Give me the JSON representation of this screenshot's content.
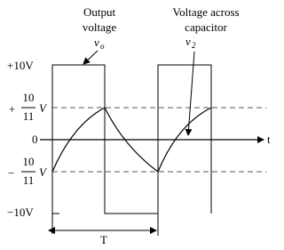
{
  "output_label": {
    "line1": "Output",
    "line2": "voltage",
    "symbol": "v",
    "subscript": "o"
  },
  "capacitor_label": {
    "line1": "Voltage across",
    "line2": "capacitor",
    "symbol": "v",
    "subscript": "2"
  },
  "levels": {
    "pos_max": "+10V",
    "pos_frac": {
      "sign": "+",
      "numerator": "10",
      "denominator": "11",
      "unit": "V"
    },
    "zero": "0",
    "neg_frac": {
      "sign": "−",
      "numerator": "10",
      "denominator": "11",
      "unit": "V"
    },
    "neg_max": "−10V"
  },
  "period_label": "T",
  "time_axis": "t"
}
